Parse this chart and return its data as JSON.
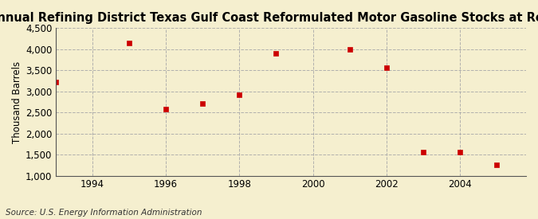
{
  "title": "Annual Refining District Texas Gulf Coast Reformulated Motor Gasoline Stocks at Refineries",
  "ylabel": "Thousand Barrels",
  "source": "Source: U.S. Energy Information Administration",
  "background_color": "#f5efcf",
  "plot_bg_color": "#f5efcf",
  "marker_color": "#cc0000",
  "marker": "s",
  "marker_size": 4,
  "x_data": [
    1993,
    1995,
    1996,
    1997,
    1998,
    1999,
    2001,
    2002,
    2003,
    2004,
    2005
  ],
  "y_data": [
    3220,
    4140,
    2590,
    2710,
    2920,
    3900,
    4000,
    3560,
    1560,
    1560,
    1260
  ],
  "xlim": [
    1993.0,
    2005.8
  ],
  "ylim": [
    1000,
    4500
  ],
  "xticks": [
    1994,
    1996,
    1998,
    2000,
    2002,
    2004
  ],
  "yticks": [
    1000,
    1500,
    2000,
    2500,
    3000,
    3500,
    4000,
    4500
  ],
  "ytick_labels": [
    "1,000",
    "1,500",
    "2,000",
    "2,500",
    "3,000",
    "3,500",
    "4,000",
    "4,500"
  ],
  "title_fontsize": 10.5,
  "label_fontsize": 8.5,
  "tick_fontsize": 8.5,
  "source_fontsize": 7.5
}
